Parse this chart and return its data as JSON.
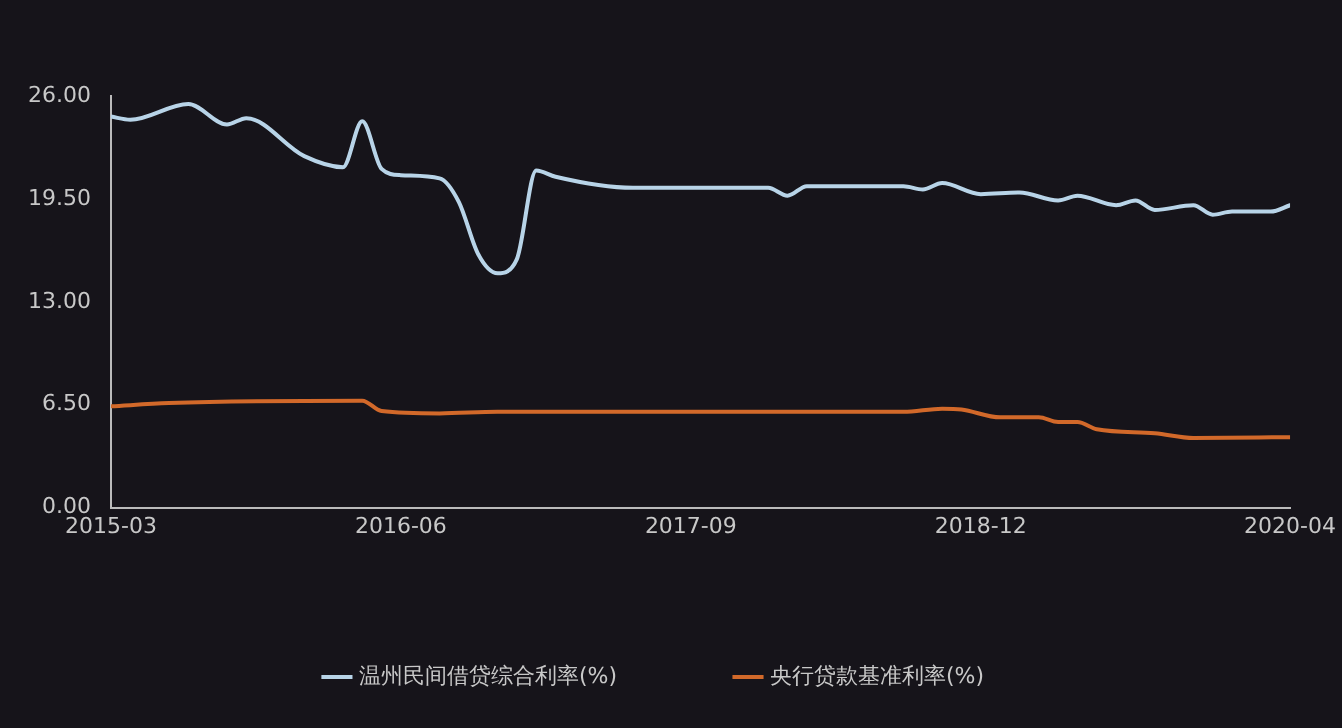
{
  "chart_data": {
    "type": "line",
    "xlim": [
      "2015-03",
      "2020-04"
    ],
    "xticks": [
      "2015-03",
      "2016-06",
      "2017-09",
      "2018-12",
      "2020-04"
    ],
    "ylim": [
      0,
      26
    ],
    "yticks": [
      {
        "value": 0,
        "label": "0.00"
      },
      {
        "value": 6.5,
        "label": "6.50"
      },
      {
        "value": 13,
        "label": "13.00"
      },
      {
        "value": 19.5,
        "label": "19.50"
      },
      {
        "value": 26,
        "label": "26.00"
      }
    ],
    "grid": false,
    "legend": "bottom",
    "marker": "none",
    "line_style": "solid",
    "series": [
      {
        "name": "温州民间借贷综合利率(%)",
        "color": "#b8d4e8",
        "x": [
          "2015-03",
          "2015-04",
          "2015-07",
          "2015-09",
          "2015-10",
          "2016-01",
          "2016-03",
          "2016-04",
          "2016-05",
          "2016-06",
          "2016-08",
          "2016-09",
          "2016-10",
          "2016-11",
          "2016-12",
          "2017-01",
          "2017-02",
          "2017-06",
          "2018-01",
          "2018-02",
          "2018-03",
          "2018-08",
          "2018-09",
          "2018-10",
          "2018-12",
          "2019-02",
          "2019-04",
          "2019-05",
          "2019-07",
          "2019-08",
          "2019-09",
          "2019-11",
          "2019-12",
          "2020-01",
          "2020-03",
          "2020-04"
        ],
        "values": [
          24.7,
          24.5,
          25.5,
          24.2,
          24.6,
          22.2,
          21.5,
          24.4,
          21.4,
          21.0,
          20.8,
          19.3,
          16.0,
          14.8,
          15.7,
          21.3,
          20.9,
          20.2,
          20.2,
          19.7,
          20.3,
          20.3,
          20.1,
          20.5,
          19.8,
          19.9,
          19.4,
          19.7,
          19.1,
          19.4,
          18.8,
          19.1,
          18.5,
          18.7,
          18.7,
          19.1
        ]
      },
      {
        "name": "央行贷款基准利率(%)",
        "color": "#d2692a",
        "x": [
          "2015-03",
          "2015-06",
          "2016-04",
          "2016-05",
          "2016-08",
          "2016-11",
          "2017-07",
          "2018-08",
          "2018-10",
          "2018-11",
          "2019-01",
          "2019-03",
          "2019-04",
          "2019-05",
          "2019-06",
          "2019-09",
          "2019-11",
          "2020-04"
        ],
        "values": [
          6.4,
          6.6,
          6.75,
          6.1,
          5.95,
          6.05,
          6.05,
          6.05,
          6.25,
          6.2,
          5.7,
          5.7,
          5.4,
          5.4,
          4.95,
          4.7,
          4.4,
          4.45
        ]
      }
    ]
  }
}
